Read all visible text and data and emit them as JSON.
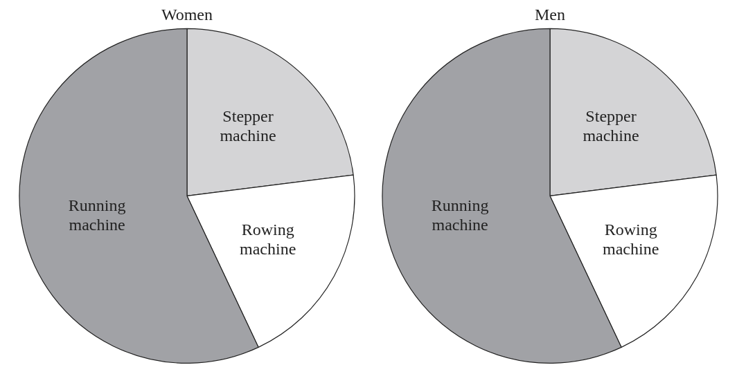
{
  "chart_data": [
    {
      "type": "pie",
      "title": "Women",
      "categories": [
        "Stepper machine",
        "Rowing machine",
        "Running machine"
      ],
      "values": [
        23,
        20,
        57
      ],
      "colors": [
        "#d4d4d6",
        "#ffffff",
        "#a1a2a6"
      ],
      "legend": false
    },
    {
      "type": "pie",
      "title": "Men",
      "categories": [
        "Stepper machine",
        "Rowing machine",
        "Running machine"
      ],
      "values": [
        23,
        20,
        57
      ],
      "colors": [
        "#d4d4d6",
        "#ffffff",
        "#a1a2a6"
      ],
      "legend": false
    }
  ]
}
